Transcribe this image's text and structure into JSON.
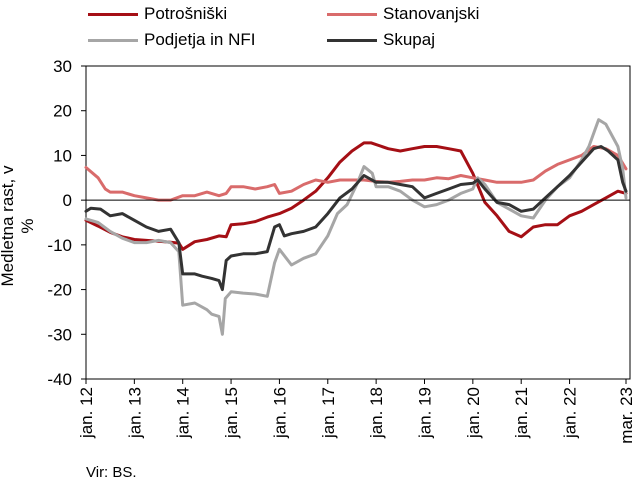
{
  "chart_data": {
    "type": "line",
    "ylabel": "Medletna rast, v %",
    "ylim": [
      -40,
      30
    ],
    "yticks": [
      30,
      20,
      10,
      0,
      -10,
      -20,
      -30,
      -40
    ],
    "xlim": [
      2012.0,
      2023.25
    ],
    "xticks": [
      {
        "x": 2012.0,
        "label": "jan. 12"
      },
      {
        "x": 2013.0,
        "label": "jan. 13"
      },
      {
        "x": 2014.0,
        "label": "jan. 14"
      },
      {
        "x": 2015.0,
        "label": "jan. 15"
      },
      {
        "x": 2016.0,
        "label": "jan. 16"
      },
      {
        "x": 2017.0,
        "label": "jan. 17"
      },
      {
        "x": 2018.0,
        "label": "jan. 18"
      },
      {
        "x": 2019.0,
        "label": "jan. 19"
      },
      {
        "x": 2020.0,
        "label": "jan. 20"
      },
      {
        "x": 2021.0,
        "label": "jan. 21"
      },
      {
        "x": 2022.0,
        "label": "jan. 22"
      },
      {
        "x": 2023.167,
        "label": "mar. 23"
      }
    ],
    "legend_position": "top",
    "grid": false,
    "zero_line": true,
    "series": [
      {
        "name": "Potrošniški",
        "color": "#a50f15",
        "points": [
          [
            2012.0,
            -4.5
          ],
          [
            2012.25,
            -5.8
          ],
          [
            2012.5,
            -7.2
          ],
          [
            2012.75,
            -8.2
          ],
          [
            2013.0,
            -8.8
          ],
          [
            2013.25,
            -9.0
          ],
          [
            2013.5,
            -9.2
          ],
          [
            2013.75,
            -9.4
          ],
          [
            2013.92,
            -9.6
          ],
          [
            2014.0,
            -11.0
          ],
          [
            2014.25,
            -9.3
          ],
          [
            2014.5,
            -8.8
          ],
          [
            2014.75,
            -8.0
          ],
          [
            2014.9,
            -8.2
          ],
          [
            2015.0,
            -5.5
          ],
          [
            2015.25,
            -5.3
          ],
          [
            2015.5,
            -4.8
          ],
          [
            2015.75,
            -3.8
          ],
          [
            2016.0,
            -3.0
          ],
          [
            2016.25,
            -1.8
          ],
          [
            2016.5,
            0.0
          ],
          [
            2016.75,
            2.0
          ],
          [
            2017.0,
            5.0
          ],
          [
            2017.25,
            8.5
          ],
          [
            2017.5,
            11.0
          ],
          [
            2017.75,
            12.8
          ],
          [
            2017.9,
            12.8
          ],
          [
            2018.25,
            11.5
          ],
          [
            2018.5,
            11.0
          ],
          [
            2018.75,
            11.5
          ],
          [
            2019.0,
            12.0
          ],
          [
            2019.25,
            12.0
          ],
          [
            2019.5,
            11.5
          ],
          [
            2019.75,
            11.0
          ],
          [
            2020.0,
            6.0
          ],
          [
            2020.25,
            -0.5
          ],
          [
            2020.5,
            -3.5
          ],
          [
            2020.75,
            -7.0
          ],
          [
            2021.0,
            -8.2
          ],
          [
            2021.25,
            -6.0
          ],
          [
            2021.5,
            -5.5
          ],
          [
            2021.75,
            -5.5
          ],
          [
            2022.0,
            -3.5
          ],
          [
            2022.25,
            -2.5
          ],
          [
            2022.5,
            -1.0
          ],
          [
            2022.75,
            0.5
          ],
          [
            2023.0,
            2.0
          ],
          [
            2023.167,
            1.5
          ]
        ]
      },
      {
        "name": "Stanovanjski",
        "color": "#d96b6b",
        "points": [
          [
            2012.0,
            7.3
          ],
          [
            2012.25,
            5.0
          ],
          [
            2012.4,
            2.5
          ],
          [
            2012.5,
            1.8
          ],
          [
            2012.75,
            1.8
          ],
          [
            2013.0,
            1.0
          ],
          [
            2013.25,
            0.5
          ],
          [
            2013.5,
            0.0
          ],
          [
            2013.75,
            0.0
          ],
          [
            2014.0,
            1.0
          ],
          [
            2014.25,
            1.0
          ],
          [
            2014.5,
            1.8
          ],
          [
            2014.75,
            1.0
          ],
          [
            2014.9,
            1.5
          ],
          [
            2015.0,
            3.0
          ],
          [
            2015.25,
            3.0
          ],
          [
            2015.5,
            2.5
          ],
          [
            2015.75,
            3.0
          ],
          [
            2015.9,
            3.5
          ],
          [
            2016.0,
            1.5
          ],
          [
            2016.25,
            2.0
          ],
          [
            2016.5,
            3.5
          ],
          [
            2016.75,
            4.5
          ],
          [
            2017.0,
            4.0
          ],
          [
            2017.25,
            4.5
          ],
          [
            2017.5,
            4.5
          ],
          [
            2017.75,
            4.5
          ],
          [
            2018.0,
            4.2
          ],
          [
            2018.25,
            4.0
          ],
          [
            2018.5,
            4.2
          ],
          [
            2018.75,
            4.5
          ],
          [
            2019.0,
            4.5
          ],
          [
            2019.25,
            5.0
          ],
          [
            2019.5,
            4.8
          ],
          [
            2019.75,
            5.5
          ],
          [
            2020.0,
            5.0
          ],
          [
            2020.25,
            4.5
          ],
          [
            2020.5,
            4.0
          ],
          [
            2020.75,
            4.0
          ],
          [
            2021.0,
            4.0
          ],
          [
            2021.25,
            4.5
          ],
          [
            2021.5,
            6.5
          ],
          [
            2021.75,
            8.0
          ],
          [
            2022.0,
            9.0
          ],
          [
            2022.25,
            10.0
          ],
          [
            2022.5,
            12.0
          ],
          [
            2022.75,
            11.5
          ],
          [
            2023.0,
            10.0
          ],
          [
            2023.167,
            7.0
          ]
        ]
      },
      {
        "name": "Podjetja in NFI",
        "color": "#a6a6a6",
        "points": [
          [
            2012.0,
            -4.2
          ],
          [
            2012.25,
            -5.0
          ],
          [
            2012.5,
            -7.0
          ],
          [
            2012.75,
            -8.5
          ],
          [
            2013.0,
            -9.5
          ],
          [
            2013.25,
            -9.5
          ],
          [
            2013.5,
            -9.0
          ],
          [
            2013.75,
            -9.5
          ],
          [
            2013.92,
            -11.5
          ],
          [
            2014.0,
            -23.5
          ],
          [
            2014.25,
            -23.0
          ],
          [
            2014.5,
            -24.5
          ],
          [
            2014.6,
            -25.5
          ],
          [
            2014.75,
            -26.0
          ],
          [
            2014.82,
            -30.0
          ],
          [
            2014.88,
            -22.0
          ],
          [
            2015.0,
            -20.5
          ],
          [
            2015.25,
            -20.8
          ],
          [
            2015.5,
            -21.0
          ],
          [
            2015.75,
            -21.5
          ],
          [
            2015.9,
            -14.0
          ],
          [
            2016.0,
            -11.0
          ],
          [
            2016.25,
            -14.5
          ],
          [
            2016.5,
            -13.0
          ],
          [
            2016.75,
            -12.0
          ],
          [
            2017.0,
            -8.0
          ],
          [
            2017.2,
            -3.0
          ],
          [
            2017.4,
            -1.0
          ],
          [
            2017.6,
            3.5
          ],
          [
            2017.75,
            7.5
          ],
          [
            2017.92,
            6.0
          ],
          [
            2018.0,
            3.0
          ],
          [
            2018.25,
            3.0
          ],
          [
            2018.5,
            2.0
          ],
          [
            2018.75,
            0.0
          ],
          [
            2019.0,
            -1.5
          ],
          [
            2019.25,
            -1.0
          ],
          [
            2019.5,
            0.0
          ],
          [
            2019.75,
            1.5
          ],
          [
            2020.0,
            2.5
          ],
          [
            2020.1,
            5.0
          ],
          [
            2020.25,
            3.5
          ],
          [
            2020.5,
            -0.5
          ],
          [
            2020.75,
            -2.0
          ],
          [
            2021.0,
            -3.5
          ],
          [
            2021.25,
            -4.0
          ],
          [
            2021.5,
            0.0
          ],
          [
            2021.75,
            3.0
          ],
          [
            2022.0,
            5.0
          ],
          [
            2022.25,
            9.0
          ],
          [
            2022.4,
            12.0
          ],
          [
            2022.6,
            18.0
          ],
          [
            2022.75,
            17.0
          ],
          [
            2023.0,
            12.0
          ],
          [
            2023.1,
            7.0
          ],
          [
            2023.167,
            0.5
          ]
        ]
      },
      {
        "name": "Skupaj",
        "color": "#333333",
        "points": [
          [
            2012.0,
            -2.5
          ],
          [
            2012.1,
            -1.8
          ],
          [
            2012.3,
            -2.0
          ],
          [
            2012.5,
            -3.5
          ],
          [
            2012.75,
            -3.0
          ],
          [
            2013.0,
            -4.5
          ],
          [
            2013.25,
            -6.0
          ],
          [
            2013.5,
            -7.0
          ],
          [
            2013.75,
            -6.5
          ],
          [
            2013.92,
            -9.5
          ],
          [
            2014.0,
            -16.5
          ],
          [
            2014.25,
            -16.5
          ],
          [
            2014.4,
            -17.0
          ],
          [
            2014.6,
            -17.5
          ],
          [
            2014.75,
            -18.0
          ],
          [
            2014.82,
            -20.0
          ],
          [
            2014.9,
            -13.5
          ],
          [
            2015.0,
            -12.5
          ],
          [
            2015.25,
            -12.0
          ],
          [
            2015.5,
            -12.0
          ],
          [
            2015.75,
            -11.5
          ],
          [
            2015.9,
            -6.0
          ],
          [
            2016.0,
            -5.5
          ],
          [
            2016.1,
            -8.0
          ],
          [
            2016.25,
            -7.5
          ],
          [
            2016.5,
            -7.0
          ],
          [
            2016.75,
            -6.0
          ],
          [
            2017.0,
            -3.0
          ],
          [
            2017.25,
            0.5
          ],
          [
            2017.5,
            2.5
          ],
          [
            2017.75,
            5.5
          ],
          [
            2018.0,
            4.0
          ],
          [
            2018.25,
            4.0
          ],
          [
            2018.5,
            3.5
          ],
          [
            2018.75,
            3.0
          ],
          [
            2019.0,
            0.5
          ],
          [
            2019.25,
            1.5
          ],
          [
            2019.5,
            2.5
          ],
          [
            2019.75,
            3.5
          ],
          [
            2020.0,
            3.8
          ],
          [
            2020.1,
            4.5
          ],
          [
            2020.25,
            2.5
          ],
          [
            2020.5,
            -0.5
          ],
          [
            2020.75,
            -1.0
          ],
          [
            2021.0,
            -2.5
          ],
          [
            2021.25,
            -2.0
          ],
          [
            2021.5,
            0.5
          ],
          [
            2021.75,
            3.0
          ],
          [
            2022.0,
            5.5
          ],
          [
            2022.25,
            8.5
          ],
          [
            2022.5,
            11.5
          ],
          [
            2022.65,
            12.0
          ],
          [
            2022.8,
            11.0
          ],
          [
            2023.0,
            9.0
          ],
          [
            2023.1,
            4.0
          ],
          [
            2023.167,
            2.0
          ]
        ]
      }
    ]
  },
  "source": "Vir: BS."
}
